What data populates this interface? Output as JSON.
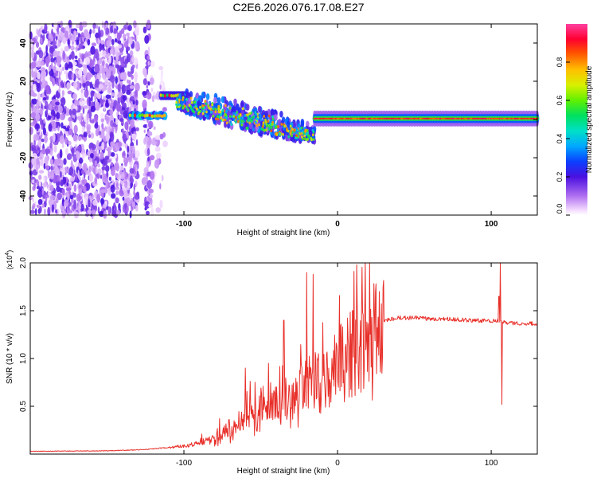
{
  "figure_title": "C2E6.2026.076.17.08.E27",
  "chart_data": [
    {
      "type": "heatmap",
      "title": "C2E6.2026.076.17.08.E27",
      "xlabel": "Height of straight line (km)",
      "ylabel": "Frequency (Hz)",
      "xlim": [
        -200,
        130
      ],
      "ylim": [
        -50,
        50
      ],
      "xticks": [
        -100,
        0,
        100
      ],
      "yticks": [
        -40,
        -20,
        0,
        20,
        40
      ],
      "colorbar": {
        "label": "Normalized spectral amplitude",
        "range": [
          0,
          1
        ],
        "ticks": [
          "0.0",
          "0.2",
          "0.4",
          "0.6",
          "0.8"
        ]
      },
      "regions": [
        {
          "name": "noise",
          "x_range": [
            -200,
            -130
          ],
          "f_range": [
            -50,
            50
          ],
          "amplitude": 0.15
        },
        {
          "name": "noise-stripe",
          "x_range": [
            -126,
            -122
          ],
          "f_range": [
            -50,
            50
          ],
          "amplitude": 0.15
        },
        {
          "name": "sparse-noise",
          "x_range": [
            -122,
            -112
          ],
          "f_range": [
            -50,
            30
          ],
          "amplitude": 0.08
        },
        {
          "name": "early-band",
          "x_range": [
            -135,
            -112
          ],
          "f_center": 2,
          "amplitude": 0.85
        },
        {
          "name": "upper-segment",
          "x_range": [
            -115,
            -98
          ],
          "f_center": 12.5,
          "amplitude": 0.9
        },
        {
          "name": "descending-cluster",
          "x_range": [
            -105,
            -15
          ],
          "f_start": 8,
          "f_end": -10,
          "amplitude": 0.55
        },
        {
          "name": "tonal-line",
          "x_range": [
            -15,
            130
          ],
          "f_center": 0.5,
          "amplitude": 0.95
        }
      ]
    },
    {
      "type": "line",
      "xlabel": "Height of straight line (km)",
      "ylabel": "SNR (10 * v/v)",
      "multiplier": "(x10^4)",
      "multiplier_base": "(x10",
      "multiplier_exp": "4",
      "multiplier_close": ")",
      "xlim": [
        -200,
        130
      ],
      "ylim": [
        0,
        20000
      ],
      "xticks": [
        -100,
        0,
        100
      ],
      "yticks": [
        5000,
        10000,
        15000,
        20000
      ],
      "ytick_labels": [
        "0.5",
        "1.0",
        "1.5",
        "2.0"
      ],
      "color": "#e8302a",
      "series": [
        {
          "name": "SNR",
          "x": [
            -200,
            -150,
            -130,
            -120,
            -110,
            -100,
            -90,
            -80,
            -70,
            -60,
            -50,
            -40,
            -30,
            -20,
            -10,
            0,
            10,
            20,
            30,
            40,
            50,
            60,
            70,
            80,
            90,
            100,
            104,
            106,
            110,
            120,
            130
          ],
          "values": [
            300,
            350,
            450,
            550,
            700,
            900,
            1200,
            1800,
            2800,
            4200,
            5200,
            5800,
            6500,
            7500,
            8500,
            9800,
            11500,
            13000,
            14000,
            14300,
            14300,
            14200,
            14200,
            14100,
            14000,
            14000,
            14000,
            14000,
            13800,
            13700,
            13700
          ],
          "spikes": [
            {
              "x": -20,
              "value": 19000
            },
            {
              "x": -16,
              "value": 18800
            },
            {
              "x": -35,
              "value": 14000
            },
            {
              "x": -60,
              "value": 9000
            },
            {
              "x": -45,
              "value": 9500
            },
            {
              "x": 106,
              "value": 20500
            },
            {
              "x": 105,
              "value": 16500
            },
            {
              "x": 107,
              "value": 5200
            }
          ]
        }
      ]
    }
  ]
}
